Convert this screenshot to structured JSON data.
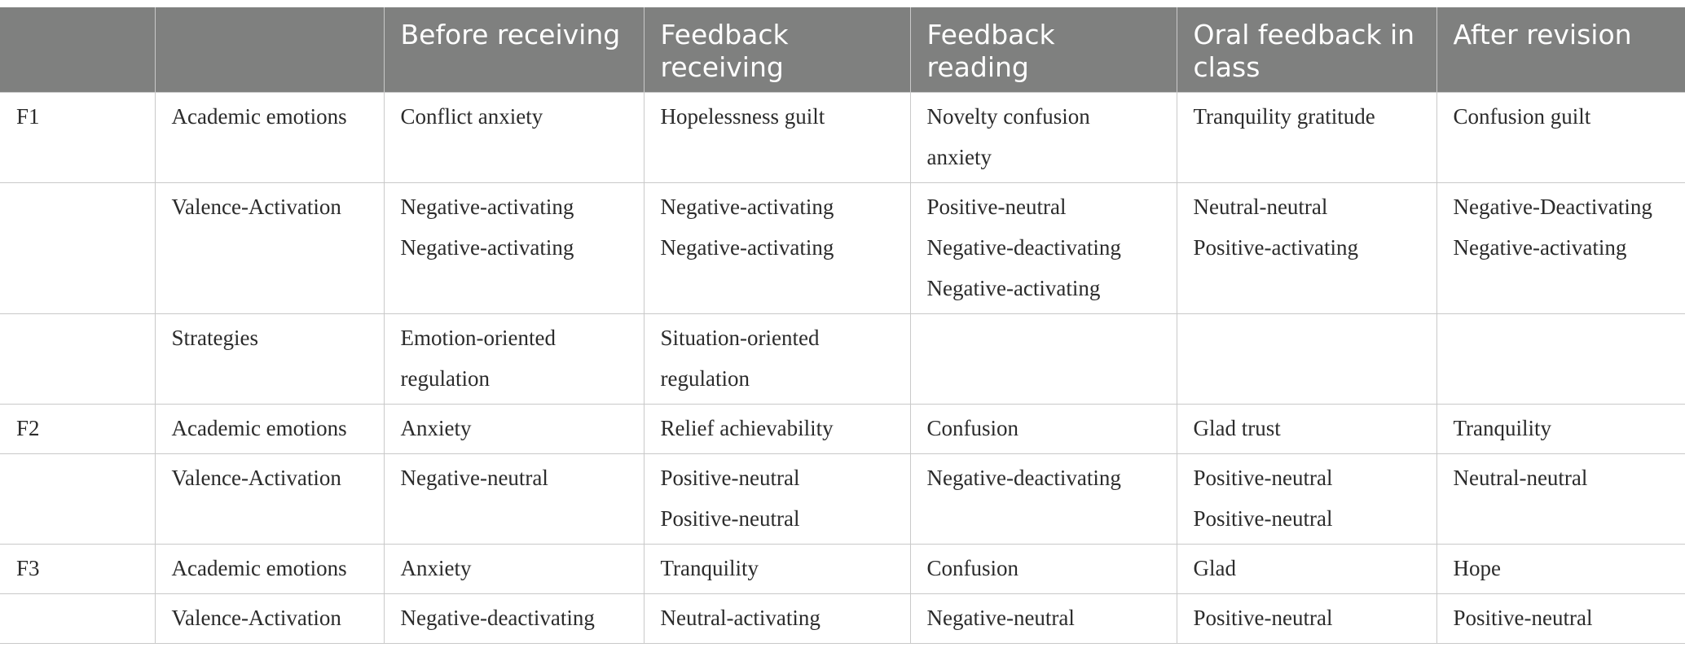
{
  "table": {
    "headers": [
      "",
      "",
      "Before receiving",
      "Feedback receiving",
      "Feedback reading",
      "Oral feedback in class",
      "After revision"
    ],
    "rows": [
      {
        "cells": [
          [
            "F1"
          ],
          [
            "Academic emotions"
          ],
          [
            "Conflict anxiety"
          ],
          [
            "Hopelessness guilt"
          ],
          [
            "Novelty confusion",
            "anxiety"
          ],
          [
            "Tranquility gratitude"
          ],
          [
            "Confusion guilt"
          ]
        ]
      },
      {
        "cells": [
          [],
          [
            "Valence-Activation"
          ],
          [
            "Negative-activating",
            "Negative-activating"
          ],
          [
            "Negative-activating",
            "Negative-activating"
          ],
          [
            "Positive-neutral",
            "Negative-deactivating",
            "Negative-activating"
          ],
          [
            "Neutral-neutral",
            "Positive-activating"
          ],
          [
            "Negative-Deactivating",
            "Negative-activating"
          ]
        ]
      },
      {
        "cells": [
          [],
          [
            "Strategies"
          ],
          [
            "Emotion-oriented",
            "regulation"
          ],
          [
            "Situation-oriented",
            "regulation"
          ],
          [],
          [],
          []
        ]
      },
      {
        "cells": [
          [
            "F2"
          ],
          [
            "Academic emotions"
          ],
          [
            "Anxiety"
          ],
          [
            "Relief achievability"
          ],
          [
            "Confusion"
          ],
          [
            "Glad trust"
          ],
          [
            "Tranquility"
          ]
        ]
      },
      {
        "cells": [
          [],
          [
            "Valence-Activation"
          ],
          [
            "Negative-neutral"
          ],
          [
            "Positive-neutral",
            "Positive-neutral"
          ],
          [
            "Negative-deactivating"
          ],
          [
            "Positive-neutral",
            "Positive-neutral"
          ],
          [
            "Neutral-neutral"
          ]
        ]
      },
      {
        "cells": [
          [
            "F3"
          ],
          [
            "Academic emotions"
          ],
          [
            "Anxiety"
          ],
          [
            "Tranquility"
          ],
          [
            "Confusion"
          ],
          [
            "Glad"
          ],
          [
            "Hope"
          ]
        ]
      },
      {
        "cells": [
          [],
          [
            "Valence-Activation"
          ],
          [
            "Negative-deactivating"
          ],
          [
            "Neutral-activating"
          ],
          [
            "Negative-neutral"
          ],
          [
            "Positive-neutral"
          ],
          [
            "Positive-neutral"
          ]
        ]
      }
    ]
  }
}
